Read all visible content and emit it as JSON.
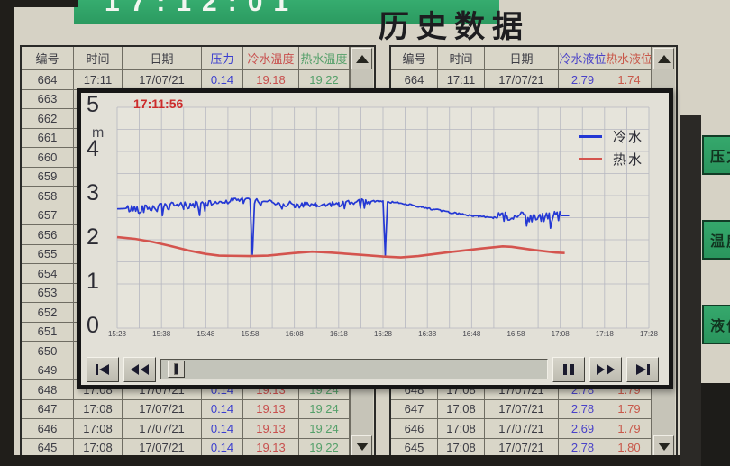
{
  "window": {
    "title": "历史数据",
    "clock": "17:12:01"
  },
  "left_table": {
    "headers": [
      "编号",
      "时间",
      "日期",
      "压力",
      "冷水温度",
      "热水温度"
    ],
    "header_colors": [
      "#3c3c44",
      "#3c3c44",
      "#3c3c44",
      "#3a3ecf",
      "#c8504e",
      "#55a06a"
    ],
    "value_colors": [
      "#3c3c44",
      "#3c3c44",
      "#3c3c44",
      "#3a3ecf",
      "#c8504e",
      "#55a06a"
    ],
    "rows": [
      {
        "id": "664",
        "time": "17:11",
        "date": "17/07/21",
        "pressure": "0.14",
        "cold_temp": "19.18",
        "hot_temp": "19.22"
      },
      {
        "id": "663"
      },
      {
        "id": "662"
      },
      {
        "id": "661"
      },
      {
        "id": "660"
      },
      {
        "id": "659"
      },
      {
        "id": "658"
      },
      {
        "id": "657"
      },
      {
        "id": "656"
      },
      {
        "id": "655"
      },
      {
        "id": "654"
      },
      {
        "id": "653"
      },
      {
        "id": "652"
      },
      {
        "id": "651"
      },
      {
        "id": "650"
      },
      {
        "id": "649"
      },
      {
        "id": "648",
        "time": "17:08",
        "date": "17/07/21",
        "pressure": "0.14",
        "cold_temp": "19.13",
        "hot_temp": "19.24"
      },
      {
        "id": "647",
        "time": "17:08",
        "date": "17/07/21",
        "pressure": "0.14",
        "cold_temp": "19.13",
        "hot_temp": "19.24"
      },
      {
        "id": "646",
        "time": "17:08",
        "date": "17/07/21",
        "pressure": "0.14",
        "cold_temp": "19.13",
        "hot_temp": "19.24"
      },
      {
        "id": "645",
        "time": "17:08",
        "date": "17/07/21",
        "pressure": "0.14",
        "cold_temp": "19.13",
        "hot_temp": "19.22"
      }
    ]
  },
  "right_table": {
    "headers": [
      "编号",
      "时间",
      "日期",
      "冷水液位",
      "热水液位"
    ],
    "header_colors": [
      "#3c3c44",
      "#3c3c44",
      "#3c3c44",
      "#4a42c8",
      "#c8584a"
    ],
    "value_colors": [
      "#3c3c44",
      "#3c3c44",
      "#3c3c44",
      "#4a42c8",
      "#c8584a"
    ],
    "rows": [
      {
        "id": "664",
        "time": "17:11",
        "date": "17/07/21",
        "cold_level": "2.79",
        "hot_level": "1.74"
      },
      {
        "id": "663"
      },
      {
        "id": "662"
      },
      {
        "id": "661"
      },
      {
        "id": "660"
      },
      {
        "id": "659"
      },
      {
        "id": "658"
      },
      {
        "id": "657"
      },
      {
        "id": "656"
      },
      {
        "id": "655"
      },
      {
        "id": "654"
      },
      {
        "id": "653"
      },
      {
        "id": "652"
      },
      {
        "id": "651"
      },
      {
        "id": "650"
      },
      {
        "id": "649"
      },
      {
        "id": "648",
        "time": "17:08",
        "date": "17/07/21",
        "cold_level": "2.78",
        "hot_level": "1.79"
      },
      {
        "id": "647",
        "time": "17:08",
        "date": "17/07/21",
        "cold_level": "2.78",
        "hot_level": "1.79"
      },
      {
        "id": "646",
        "time": "17:08",
        "date": "17/07/21",
        "cold_level": "2.69",
        "hot_level": "1.79"
      },
      {
        "id": "645",
        "time": "17:08",
        "date": "17/07/21",
        "cold_level": "2.78",
        "hot_level": "1.80"
      }
    ]
  },
  "side_buttons": [
    {
      "label": "压力"
    },
    {
      "label": "温度"
    },
    {
      "label": "液位"
    }
  ],
  "trend_window": {
    "timestamp": "17:11:56",
    "unit": "m",
    "legend": [
      {
        "label": "冷水",
        "color": "#2438d4"
      },
      {
        "label": "热水",
        "color": "#d4544e"
      }
    ]
  },
  "chart_data": {
    "type": "line",
    "title": "",
    "ylabel": "m",
    "ylim": [
      0,
      5
    ],
    "y_ticks": [
      5,
      4,
      3,
      2,
      1,
      0
    ],
    "x_labels": [
      "15:28",
      "15:38",
      "15:48",
      "15:58",
      "16:08",
      "16:18",
      "16:28",
      "16:38",
      "16:48",
      "16:58",
      "17:08",
      "17:18",
      "17:28"
    ],
    "x_range_minutes": [
      0,
      120
    ],
    "grid": true,
    "legend_position": "top-right",
    "series": [
      {
        "name": "冷水",
        "color": "#2438d4",
        "points": [
          [
            0,
            2.7
          ],
          [
            5,
            2.72
          ],
          [
            10,
            2.74
          ],
          [
            15,
            2.78
          ],
          [
            20,
            2.82
          ],
          [
            25,
            2.88
          ],
          [
            28,
            2.92
          ],
          [
            30,
            2.9
          ],
          [
            30.5,
            1.62
          ],
          [
            31,
            2.88
          ],
          [
            35,
            2.86
          ],
          [
            40,
            2.8
          ],
          [
            45,
            2.78
          ],
          [
            50,
            2.82
          ],
          [
            55,
            2.86
          ],
          [
            60,
            2.88
          ],
          [
            60.5,
            1.65
          ],
          [
            61,
            2.86
          ],
          [
            65,
            2.82
          ],
          [
            70,
            2.72
          ],
          [
            75,
            2.62
          ],
          [
            80,
            2.55
          ],
          [
            85,
            2.5
          ],
          [
            88,
            2.52
          ],
          [
            92,
            2.55
          ],
          [
            96,
            2.5
          ],
          [
            100,
            2.55
          ],
          [
            102,
            2.55
          ]
        ],
        "noise_bands": [
          [
            2,
            19,
            0.1,
            0.3
          ],
          [
            19,
            33,
            0.06,
            0.18
          ],
          [
            34,
            57,
            0.07,
            0.22
          ],
          [
            57,
            86,
            0.02,
            0.0
          ],
          [
            86,
            100,
            0.12,
            0.2
          ]
        ]
      },
      {
        "name": "热水",
        "color": "#d4544e",
        "points": [
          [
            0,
            2.06
          ],
          [
            4,
            2.02
          ],
          [
            8,
            1.95
          ],
          [
            12,
            1.86
          ],
          [
            16,
            1.76
          ],
          [
            20,
            1.68
          ],
          [
            23,
            1.64
          ],
          [
            30,
            1.63
          ],
          [
            34,
            1.64
          ],
          [
            40,
            1.7
          ],
          [
            44,
            1.73
          ],
          [
            48,
            1.71
          ],
          [
            55,
            1.66
          ],
          [
            60,
            1.62
          ],
          [
            64,
            1.6
          ],
          [
            68,
            1.63
          ],
          [
            75,
            1.72
          ],
          [
            82,
            1.8
          ],
          [
            87,
            1.85
          ],
          [
            89,
            1.84
          ],
          [
            94,
            1.77
          ],
          [
            99,
            1.71
          ],
          [
            101,
            1.7
          ]
        ],
        "noise_bands": []
      }
    ]
  },
  "colors": {
    "screen_bg": "#d6d2c5",
    "table_bg": "#d9d6c8",
    "popup_bg": "#e2e0d7",
    "grid_line": "#b6b7c0",
    "green_bar": "#2fa065",
    "title_text": "#1d1d20"
  }
}
